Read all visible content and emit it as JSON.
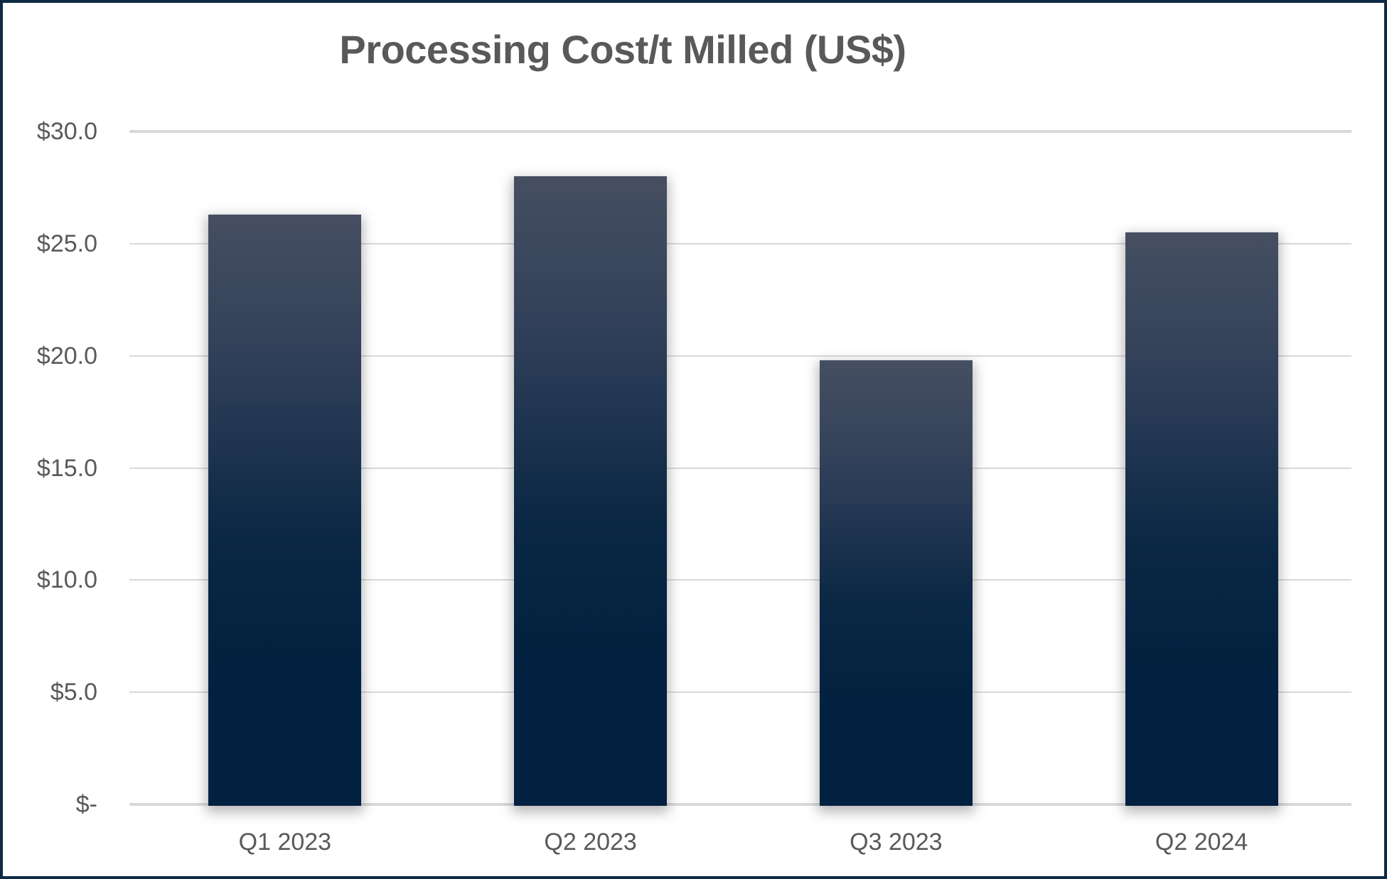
{
  "chart_data": {
    "type": "bar",
    "title": "Processing Cost/t Milled (US$)",
    "categories": [
      "Q1 2023",
      "Q2 2023",
      "Q3 2023",
      "Q2 2024"
    ],
    "values": [
      26.3,
      28.0,
      19.8,
      25.5
    ],
    "series": [
      {
        "name": "Processing Cost/t Milled (US$)",
        "values": [
          26.3,
          28.0,
          19.8,
          25.5
        ]
      }
    ],
    "xlabel": "",
    "ylabel": "",
    "ylim": [
      0,
      30
    ],
    "y_tick_values": [
      0,
      5,
      10,
      15,
      20,
      25,
      30
    ],
    "y_tick_labels": [
      "$-",
      "$5.0",
      "$10.0",
      "$15.0",
      "$20.0",
      "$25.0",
      "$30.0"
    ],
    "grid": "horizontal",
    "legend_position": "none",
    "data_labels": false
  },
  "colors": {
    "background": "#ffffff",
    "chart_border": "#0d2b45",
    "text": "#595959",
    "gridline": "#d9d9d9",
    "axis_line": "#d9d9d9",
    "bar_gradient_top": "#464f61",
    "bar_gradient_mid": "#0a2744",
    "bar_gradient_bottom": "#02203f"
  }
}
